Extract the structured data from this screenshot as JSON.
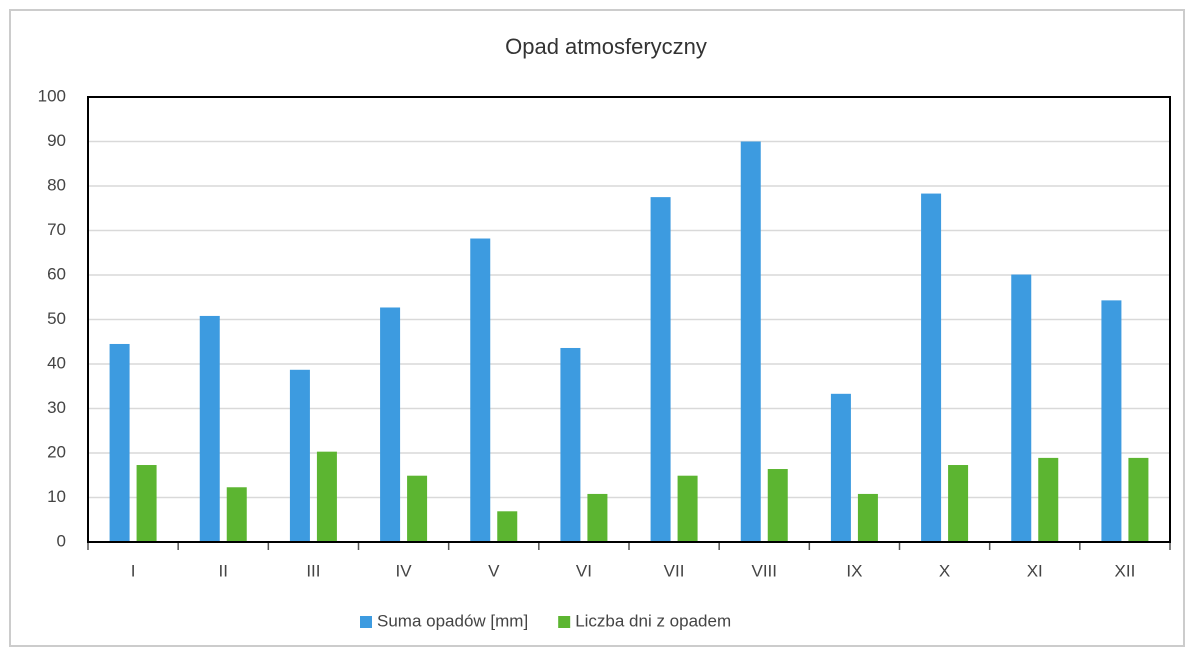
{
  "chart_data": {
    "type": "bar",
    "title": "Opad atmosferyczny",
    "categories": [
      "I",
      "II",
      "III",
      "IV",
      "V",
      "VI",
      "VII",
      "VIII",
      "IX",
      "X",
      "XI",
      "XII"
    ],
    "series": [
      {
        "name": "Suma opadów [mm]",
        "color": "#3d9be0",
        "values": [
          44.5,
          50.8,
          38.7,
          52.7,
          68.2,
          43.6,
          77.5,
          90,
          33.3,
          78.3,
          60.1,
          54.3
        ]
      },
      {
        "name": "Liczba dni z opadem",
        "color": "#5cb531",
        "values": [
          17.3,
          12.3,
          20.3,
          14.9,
          6.9,
          10.8,
          14.9,
          16.4,
          10.8,
          17.3,
          18.9,
          18.9
        ]
      }
    ],
    "ylim": [
      0,
      100
    ],
    "yticks": [
      0,
      10,
      20,
      30,
      40,
      50,
      60,
      70,
      80,
      90,
      100
    ],
    "grid": true,
    "legend": "bottom"
  }
}
